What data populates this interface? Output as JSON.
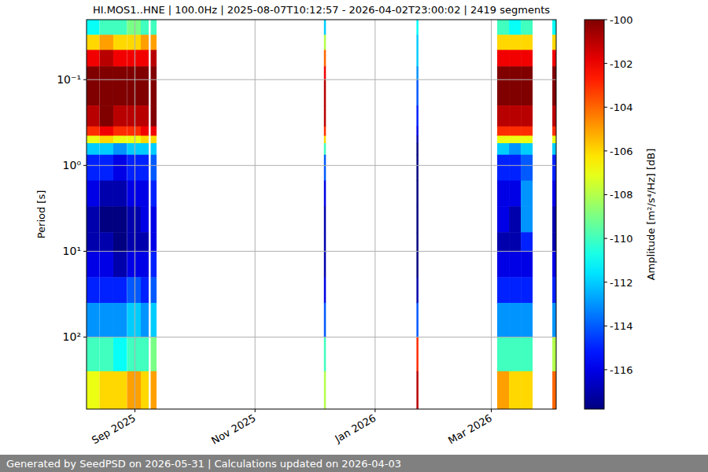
{
  "chart_data": {
    "type": "heatmap",
    "title": "HI.MOS1..HNE | 100.0Hz | 2025-08-07T10:12:57 - 2026-04-02T23:00:02 | 2419 segments",
    "y_label": "Period [s]",
    "log": "y",
    "grid": true,
    "xlim": [
      "2025-08-07T10:12:57",
      "2026-04-02T23:00:02"
    ],
    "xticks": [
      {
        "value": "2025-09-01",
        "label": "Sep 2025"
      },
      {
        "value": "2025-11-01",
        "label": "Nov 2025"
      },
      {
        "value": "2026-01-01",
        "label": "Jan 2026"
      },
      {
        "value": "2026-03-01",
        "label": "Mar 2026"
      }
    ],
    "ylim": [
      690,
      0.02
    ],
    "yticks": [
      {
        "value": 0.1,
        "label": "10⁻¹"
      },
      {
        "value": 1,
        "label": "10⁰"
      },
      {
        "value": 10,
        "label": "10¹"
      },
      {
        "value": 100,
        "label": "10²"
      }
    ],
    "period_edges": [
      0.02,
      0.03,
      0.045,
      0.07,
      0.1,
      0.2,
      0.35,
      0.45,
      0.55,
      0.75,
      1.5,
      3,
      6,
      10,
      20,
      40,
      100,
      250,
      690
    ],
    "columns": [
      {
        "start": "2025-08-07T10:12:57",
        "end": "2025-08-14",
        "values": [
          -111,
          -106,
          -102,
          -100,
          -100,
          -101,
          -103,
          -107,
          -112,
          -115,
          -116,
          -117,
          -117,
          -116,
          -115,
          -113,
          -110,
          -107
        ]
      },
      {
        "start": "2025-08-14",
        "end": "2025-08-21",
        "values": [
          -110,
          -105,
          -101,
          -100,
          -100,
          -100,
          -102,
          -106,
          -112,
          -115,
          -117,
          -118,
          -117,
          -116,
          -115,
          -113,
          -110,
          -106
        ]
      },
      {
        "start": "2025-08-21",
        "end": "2025-08-28",
        "values": [
          -110,
          -106,
          -102,
          -100,
          -100,
          -101,
          -103,
          -107,
          -113,
          -116,
          -117,
          -118,
          -118,
          -117,
          -115,
          -113,
          -111,
          -106
        ]
      },
      {
        "start": "2025-08-28",
        "end": "2025-09-04",
        "values": [
          -109,
          -106,
          -102,
          -100,
          -100,
          -101,
          -103,
          -107,
          -112,
          -115,
          -116,
          -117,
          -117,
          -116,
          -114,
          -112,
          -110,
          -105
        ]
      },
      {
        "start": "2025-09-04",
        "end": "2025-09-08",
        "values": [
          -110,
          -105,
          -102,
          -100,
          -100,
          -101,
          -102,
          -106,
          -112,
          -115,
          -116,
          -116,
          -117,
          -116,
          -115,
          -113,
          -110,
          -106
        ]
      },
      {
        "start": "2025-09-09",
        "end": "2025-09-12",
        "values": [
          -110,
          -105,
          -101,
          -100,
          -100,
          -100,
          -102,
          -106,
          -112,
          -114,
          -115,
          -116,
          -116,
          -115,
          -114,
          -112,
          -109,
          -105
        ]
      },
      {
        "start": "2025-12-06",
        "end": "2025-12-07",
        "values": [
          -112,
          -108,
          -104,
          -102,
          -101,
          -101,
          -103,
          -106,
          -110,
          -114,
          -116,
          -117,
          -117,
          -117,
          -116,
          -114,
          -110,
          -108
        ]
      },
      {
        "start": "2026-01-22",
        "end": "2026-01-23",
        "values": [
          -111,
          -112,
          -112,
          -113,
          -114,
          -115,
          -116,
          -117,
          -118,
          -118,
          -118,
          -118,
          -118,
          -118,
          -117,
          -114,
          -103,
          -101
        ]
      },
      {
        "start": "2026-03-04",
        "end": "2026-03-10",
        "values": [
          -110,
          -106,
          -102,
          -100,
          -100,
          -101,
          -103,
          -107,
          -112,
          -115,
          -116,
          -116,
          -117,
          -116,
          -115,
          -113,
          -110,
          -105
        ]
      },
      {
        "start": "2026-03-10",
        "end": "2026-03-16",
        "values": [
          -111,
          -106,
          -102,
          -100,
          -100,
          -101,
          -103,
          -107,
          -113,
          -115,
          -116,
          -117,
          -117,
          -116,
          -115,
          -113,
          -110,
          -106
        ]
      },
      {
        "start": "2026-03-16",
        "end": "2026-03-22",
        "values": [
          -110,
          -106,
          -102,
          -100,
          -100,
          -101,
          -103,
          -107,
          -112,
          -114,
          -113,
          -113,
          -115,
          -116,
          -115,
          -113,
          -110,
          -106
        ]
      },
      {
        "start": "2026-04-01",
        "end": "2026-04-02T23:00:02",
        "values": [
          -111,
          -106,
          -102,
          -100,
          -100,
          -101,
          -103,
          -107,
          -112,
          -115,
          -116,
          -117,
          -117,
          -116,
          -115,
          -113,
          -108,
          -104
        ]
      }
    ],
    "colorbar": {
      "label": "Amplitude [m²/s⁴/Hz] [dB]",
      "range": [
        -117.8,
        -100
      ],
      "ticks": [
        -100,
        -102,
        -104,
        -106,
        -108,
        -110,
        -112,
        -114,
        -116
      ]
    },
    "footer": "Generated by SeedPSD on 2026-05-31 | Calculations updated on 2026-04-03"
  }
}
